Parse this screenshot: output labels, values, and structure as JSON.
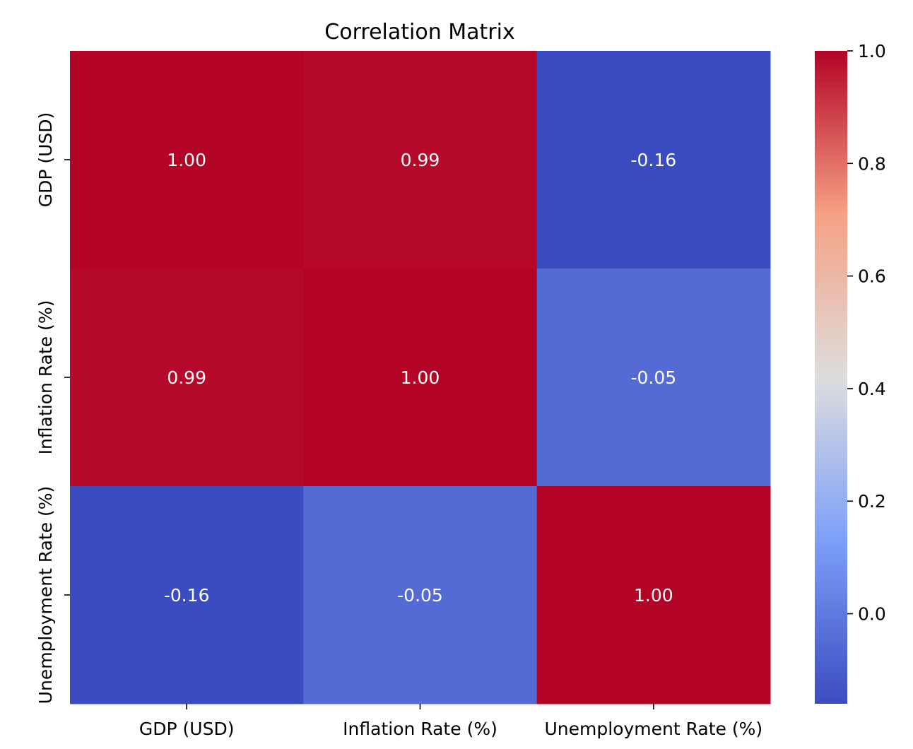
{
  "chart_data": {
    "type": "heatmap",
    "title": "Correlation Matrix",
    "xlabel": "",
    "ylabel": "",
    "x_categories": [
      "GDP (USD)",
      "Inflation Rate (%)",
      "Unemployment Rate (%)"
    ],
    "y_categories": [
      "GDP (USD)",
      "Inflation Rate (%)",
      "Unemployment Rate (%)"
    ],
    "values": [
      [
        1.0,
        0.99,
        -0.16
      ],
      [
        0.99,
        1.0,
        -0.05
      ],
      [
        -0.16,
        -0.05,
        1.0
      ]
    ],
    "annotations": [
      [
        "1.00",
        "0.99",
        "-0.16"
      ],
      [
        "0.99",
        "1.00",
        "-0.05"
      ],
      [
        "-0.16",
        "-0.05",
        "1.00"
      ]
    ],
    "colormap": "coolwarm",
    "colorbar": {
      "range": [
        -0.16,
        1.0
      ],
      "ticks": [
        0.0,
        0.2,
        0.4,
        0.6,
        0.8,
        1.0
      ],
      "tick_labels": [
        "0.0",
        "0.2",
        "0.4",
        "0.6",
        "0.8",
        "1.0"
      ]
    },
    "grid": false,
    "legend": "colorbar-right"
  }
}
